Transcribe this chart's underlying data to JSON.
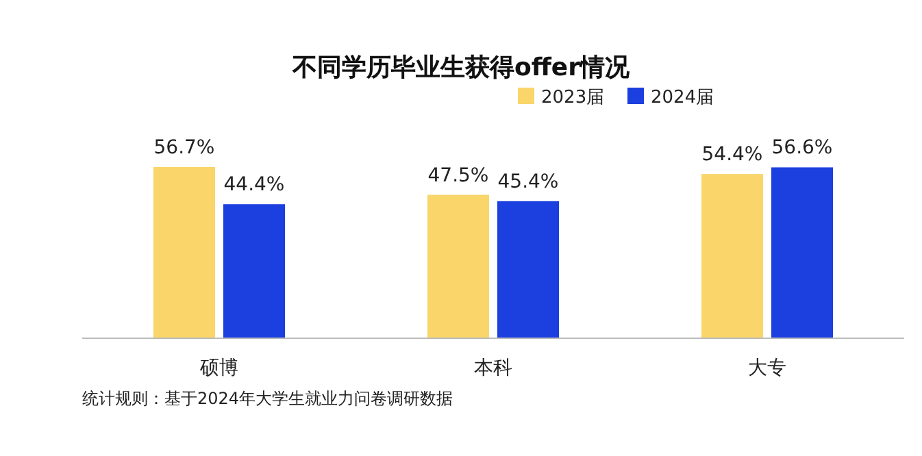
{
  "chart_data": {
    "type": "bar",
    "title": "不同学历毕业生获得offer情况",
    "categories": [
      "硕博",
      "本科",
      "大专"
    ],
    "series": [
      {
        "name": "2023届",
        "color": "#f9d56a",
        "values": [
          56.7,
          47.5,
          54.4
        ],
        "value_labels": [
          "56.7%",
          "47.5%",
          "54.4%"
        ]
      },
      {
        "name": "2024届",
        "color": "#1c3fe0",
        "values": [
          44.4,
          45.4,
          56.6
        ],
        "value_labels": [
          "44.4%",
          "45.4%",
          "56.6%"
        ]
      }
    ],
    "legend": "top right",
    "annotations": [
      "统计规则：基于2024年大学生就业力问卷调研数据"
    ]
  }
}
